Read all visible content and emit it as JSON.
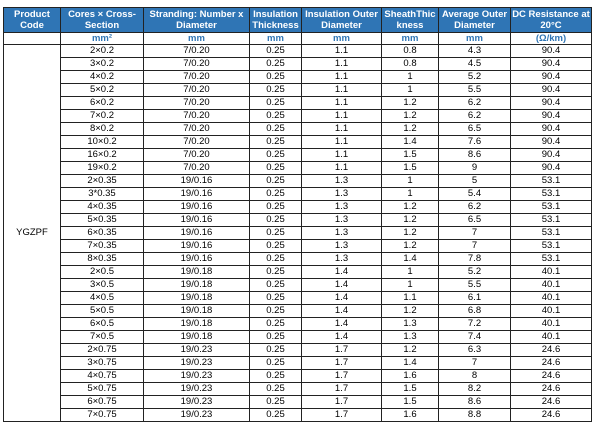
{
  "table": {
    "header": [
      "Product Code",
      "Cores × Cross-Section",
      "Stranding: Number x Diameter",
      "Insulation Thickness",
      "Insulation Outer Diameter",
      "SheathThickness",
      "Average Outer Diameter",
      "DC Resistance at 20°C"
    ],
    "units": [
      "mm²",
      "mm",
      "mm",
      "mm",
      "mm",
      "mm",
      "(Ω/km)"
    ],
    "product_code": "YGZPF",
    "rows": [
      [
        "2×0.2",
        "7/0.20",
        "0.25",
        "1.1",
        "0.8",
        "4.3",
        "90.4"
      ],
      [
        "3×0.2",
        "7/0.20",
        "0.25",
        "1.1",
        "0.8",
        "4.5",
        "90.4"
      ],
      [
        "4×0.2",
        "7/0.20",
        "0.25",
        "1.1",
        "1",
        "5.2",
        "90.4"
      ],
      [
        "5×0.2",
        "7/0.20",
        "0.25",
        "1.1",
        "1",
        "5.5",
        "90.4"
      ],
      [
        "6×0.2",
        "7/0.20",
        "0.25",
        "1.1",
        "1.2",
        "6.2",
        "90.4"
      ],
      [
        "7×0.2",
        "7/0.20",
        "0.25",
        "1.1",
        "1.2",
        "6.2",
        "90.4"
      ],
      [
        "8×0.2",
        "7/0.20",
        "0.25",
        "1.1",
        "1.2",
        "6.5",
        "90.4"
      ],
      [
        "10×0.2",
        "7/0.20",
        "0.25",
        "1.1",
        "1.4",
        "7.6",
        "90.4"
      ],
      [
        "16×0.2",
        "7/0.20",
        "0.25",
        "1.1",
        "1.5",
        "8.6",
        "90.4"
      ],
      [
        "19×0.2",
        "7/0.20",
        "0.25",
        "1.1",
        "1.5",
        "9",
        "90.4"
      ],
      [
        "2×0.35",
        "19/0.16",
        "0.25",
        "1.3",
        "1",
        "5",
        "53.1"
      ],
      [
        "3*0.35",
        "19/0.16",
        "0.25",
        "1.3",
        "1",
        "5.4",
        "53.1"
      ],
      [
        "4×0.35",
        "19/0.16",
        "0.25",
        "1.3",
        "1.2",
        "6.2",
        "53.1"
      ],
      [
        "5×0.35",
        "19/0.16",
        "0.25",
        "1.3",
        "1.2",
        "6.5",
        "53.1"
      ],
      [
        "6×0.35",
        "19/0.16",
        "0.25",
        "1.3",
        "1.2",
        "7",
        "53.1"
      ],
      [
        "7×0.35",
        "19/0.16",
        "0.25",
        "1.3",
        "1.2",
        "7",
        "53.1"
      ],
      [
        "8×0.35",
        "19/0.16",
        "0.25",
        "1.3",
        "1.4",
        "7.8",
        "53.1"
      ],
      [
        "2×0.5",
        "19/0.18",
        "0.25",
        "1.4",
        "1",
        "5.2",
        "40.1"
      ],
      [
        "3×0.5",
        "19/0.18",
        "0.25",
        "1.4",
        "1",
        "5.5",
        "40.1"
      ],
      [
        "4×0.5",
        "19/0.18",
        "0.25",
        "1.4",
        "1.1",
        "6.1",
        "40.1"
      ],
      [
        "5×0.5",
        "19/0.18",
        "0.25",
        "1.4",
        "1.2",
        "6.8",
        "40.1"
      ],
      [
        "6×0.5",
        "19/0.18",
        "0.25",
        "1.4",
        "1.3",
        "7.2",
        "40.1"
      ],
      [
        "7×0.5",
        "19/0.18",
        "0.25",
        "1.4",
        "1.3",
        "7.4",
        "40.1"
      ],
      [
        "2×0.75",
        "19/0.23",
        "0.25",
        "1.7",
        "1.2",
        "6.3",
        "24.6"
      ],
      [
        "3×0.75",
        "19/0.23",
        "0.25",
        "1.7",
        "1.4",
        "7",
        "24.6"
      ],
      [
        "4×0.75",
        "19/0.23",
        "0.25",
        "1.7",
        "1.6",
        "8",
        "24.6"
      ],
      [
        "5×0.75",
        "19/0.23",
        "0.25",
        "1.7",
        "1.5",
        "8.2",
        "24.6"
      ],
      [
        "6×0.75",
        "19/0.23",
        "0.25",
        "1.7",
        "1.5",
        "8.6",
        "24.6"
      ],
      [
        "7×0.75",
        "19/0.23",
        "0.25",
        "1.7",
        "1.6",
        "8.8",
        "24.6"
      ]
    ]
  }
}
